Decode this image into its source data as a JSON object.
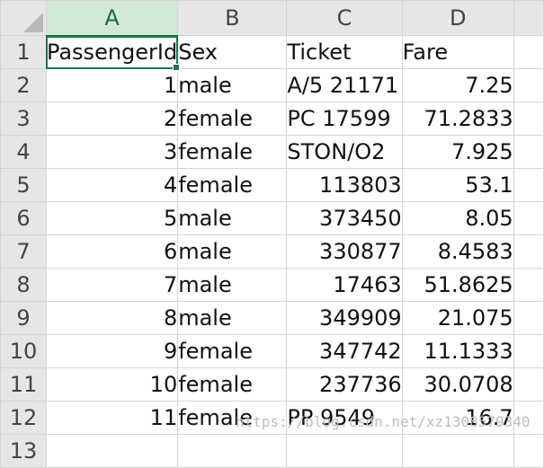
{
  "columns": [
    "A",
    "B",
    "C",
    "D"
  ],
  "row_numbers": [
    "1",
    "2",
    "3",
    "4",
    "5",
    "6",
    "7",
    "8",
    "9",
    "10",
    "11",
    "12",
    "13"
  ],
  "rows": [
    [
      "PassengerId",
      "Sex",
      "Ticket",
      "Fare"
    ],
    [
      "1",
      "male",
      "A/5 21171",
      "7.25"
    ],
    [
      "2",
      "female",
      "PC 17599",
      "71.2833"
    ],
    [
      "3",
      "female",
      "STON/O2",
      "7.925"
    ],
    [
      "4",
      "female",
      "113803",
      "53.1"
    ],
    [
      "5",
      "male",
      "373450",
      "8.05"
    ],
    [
      "6",
      "male",
      "330877",
      "8.4583"
    ],
    [
      "7",
      "male",
      "17463",
      "51.8625"
    ],
    [
      "8",
      "male",
      "349909",
      "21.075"
    ],
    [
      "9",
      "female",
      "347742",
      "11.1333"
    ],
    [
      "10",
      "female",
      "237736",
      "30.0708"
    ],
    [
      "11",
      "female",
      "PP 9549",
      "16.7"
    ]
  ],
  "watermark": "https://blog.csdn.net/xz1308579340",
  "colors": {
    "selection": "#217346",
    "header_bg": "#e6e6e6",
    "selected_header_bg": "#d2e8d8"
  }
}
